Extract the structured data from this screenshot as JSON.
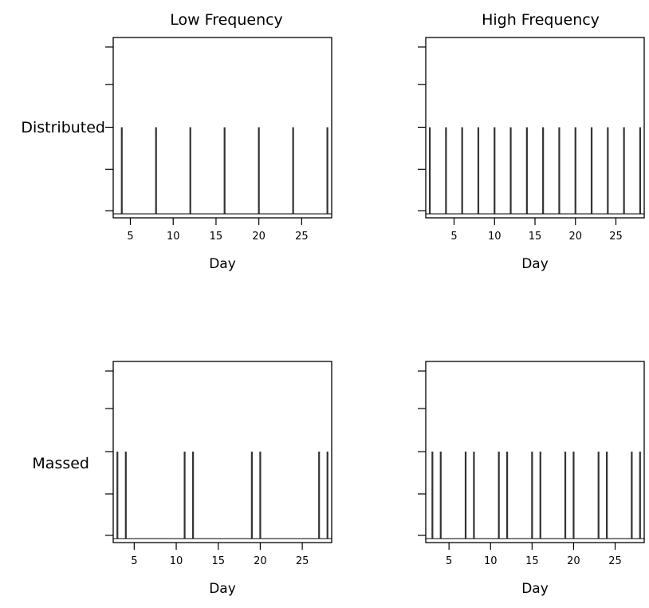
{
  "columns": [
    "Low Frequency",
    "High Frequency"
  ],
  "rows": [
    "Distributed",
    "Massed"
  ],
  "chart_data": [
    {
      "type": "event",
      "title": "Low Frequency",
      "row_label": "Distributed",
      "xlabel": "Day",
      "xlim": [
        3,
        28.5
      ],
      "xticks": [
        5,
        10,
        15,
        20,
        25
      ],
      "x": [
        4,
        8,
        12,
        16,
        20,
        24,
        28
      ]
    },
    {
      "type": "event",
      "title": "High Frequency",
      "row_label": "",
      "xlabel": "Day",
      "xlim": [
        1.5,
        28.5
      ],
      "xticks": [
        5,
        10,
        15,
        20,
        25
      ],
      "x": [
        2,
        4,
        6,
        8,
        10,
        12,
        14,
        16,
        18,
        20,
        22,
        24,
        26,
        28
      ]
    },
    {
      "type": "event",
      "title": "",
      "row_label": "Massed",
      "xlabel": "Day",
      "xlim": [
        2.5,
        28.5
      ],
      "xticks": [
        5,
        10,
        15,
        20,
        25
      ],
      "x": [
        3,
        4,
        11,
        12,
        19,
        20,
        27,
        28
      ]
    },
    {
      "type": "event",
      "title": "",
      "row_label": "",
      "xlabel": "Day",
      "xlim": [
        2.2,
        28.5
      ],
      "xticks": [
        5,
        10,
        15,
        20,
        25
      ],
      "x": [
        3,
        4,
        7,
        8,
        11,
        12,
        15,
        16,
        19,
        20,
        23,
        24,
        27,
        28
      ]
    }
  ]
}
